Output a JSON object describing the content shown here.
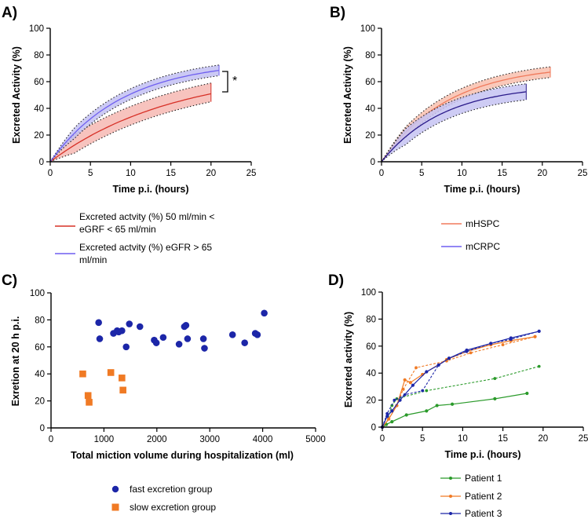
{
  "colors": {
    "red_line": "#d73027",
    "red_fill": "#f6b8b3",
    "blue_line": "#6f5ff0",
    "blue_fill": "#c2bff2",
    "salmon_line": "#f07a5c",
    "salmon_fill": "#f8bfae",
    "purple_line": "#2a1a8a",
    "purple_fill": "#c6c3f2",
    "scatter_fast": "#1c26a8",
    "scatter_slow": "#f07a24",
    "p1": "#2a9a2a",
    "p2": "#f07a24",
    "p3": "#1c26a8"
  },
  "panels": {
    "a": {
      "label": "A)",
      "sig": "*"
    },
    "b": {
      "label": "B)"
    },
    "c": {
      "label": "C)"
    },
    "d": {
      "label": "D)"
    }
  },
  "chart_data": [
    {
      "id": "A",
      "type": "line",
      "title": "",
      "xlabel": "Time p.i. (hours)",
      "ylabel": "Excreted Activity (%)",
      "xlim": [
        0,
        25
      ],
      "ylim": [
        0,
        100
      ],
      "xticks": [
        0,
        5,
        10,
        15,
        20,
        25
      ],
      "yticks": [
        0,
        20,
        40,
        60,
        80,
        100
      ],
      "annotation": "*",
      "series": [
        {
          "name": "Excreted actvity (%) 50 ml/min < eGRF < 65 ml/min",
          "legend_lines": [
            "Excreted actvity (%) 50 ml/min <",
            "eGRF < 65 ml/min"
          ],
          "color": "red",
          "plateau": 70,
          "rate": 0.065,
          "xmax": 20,
          "band_lo": 6,
          "band_hi": 8
        },
        {
          "name": "Excreted actvity (%) eGFR > 65 ml/min",
          "legend_lines": [
            "Excreted actvity (%) eGFR > 65",
            "ml/min"
          ],
          "color": "blue",
          "plateau": 76,
          "rate": 0.11,
          "xmax": 21,
          "band_lo": 4,
          "band_hi": 4
        }
      ]
    },
    {
      "id": "B",
      "type": "line",
      "title": "",
      "xlabel": "Time p.i. (hours)",
      "ylabel": "Excreted Activity (%)",
      "xlim": [
        0,
        25
      ],
      "ylim": [
        0,
        100
      ],
      "xticks": [
        0,
        5,
        10,
        15,
        20,
        25
      ],
      "yticks": [
        0,
        20,
        40,
        60,
        80,
        100
      ],
      "series": [
        {
          "name": "mHSPC",
          "color": "salmon",
          "plateau": 73,
          "rate": 0.12,
          "xmax": 21,
          "band_lo": 4,
          "band_hi": 4
        },
        {
          "name": "mCRPC",
          "color": "purple",
          "plateau": 58,
          "rate": 0.13,
          "xmax": 18,
          "band_lo": 6,
          "band_hi": 6
        }
      ]
    },
    {
      "id": "C",
      "type": "scatter",
      "title": "",
      "xlabel": "Total miction volume during hospitalization (ml)",
      "ylabel": "Exretion at 20 h p.i.",
      "xlim": [
        0,
        5000
      ],
      "ylim": [
        0,
        100
      ],
      "xticks": [
        0,
        1000,
        2000,
        3000,
        4000,
        5000
      ],
      "yticks": [
        0,
        20,
        40,
        60,
        80,
        100
      ],
      "series": [
        {
          "name": "fast excretion group",
          "marker": "circle",
          "color": "scatter_fast",
          "points": [
            [
              900,
              78
            ],
            [
              920,
              66
            ],
            [
              1180,
              70
            ],
            [
              1250,
              72
            ],
            [
              1280,
              71
            ],
            [
              1340,
              72
            ],
            [
              1420,
              60
            ],
            [
              1480,
              77
            ],
            [
              1680,
              75
            ],
            [
              1950,
              65
            ],
            [
              1990,
              63
            ],
            [
              2120,
              67
            ],
            [
              2420,
              62
            ],
            [
              2520,
              75
            ],
            [
              2550,
              76
            ],
            [
              2580,
              66
            ],
            [
              2880,
              66
            ],
            [
              2900,
              59
            ],
            [
              3430,
              69
            ],
            [
              3660,
              63
            ],
            [
              3860,
              70
            ],
            [
              3900,
              69
            ],
            [
              4030,
              85
            ]
          ]
        },
        {
          "name": "slow excretion group",
          "marker": "square",
          "color": "scatter_slow",
          "points": [
            [
              600,
              40
            ],
            [
              700,
              24
            ],
            [
              720,
              19
            ],
            [
              1130,
              41
            ],
            [
              1340,
              37
            ],
            [
              1360,
              28
            ]
          ]
        }
      ]
    },
    {
      "id": "D",
      "type": "line",
      "title": "",
      "xlabel": "Time p.i. (hours)",
      "ylabel": "Excreted activity (%)",
      "xlim": [
        0,
        25
      ],
      "ylim": [
        0,
        100
      ],
      "xticks": [
        0,
        5,
        10,
        15,
        20,
        25
      ],
      "yticks": [
        0,
        20,
        40,
        60,
        80,
        100
      ],
      "series": [
        {
          "name": "Patient 1",
          "color": "p1",
          "dashed_points": [
            [
              0,
              0
            ],
            [
              0.5,
              2
            ],
            [
              1.2,
              16
            ],
            [
              1.8,
              21
            ],
            [
              5.5,
              27
            ],
            [
              14,
              36
            ],
            [
              19.5,
              45
            ]
          ],
          "points": [
            [
              0,
              0
            ],
            [
              0.5,
              2
            ],
            [
              1.2,
              4
            ],
            [
              3,
              9
            ],
            [
              5.5,
              12
            ],
            [
              6.8,
              16
            ],
            [
              8.7,
              17
            ],
            [
              14,
              21
            ],
            [
              18,
              25
            ]
          ]
        },
        {
          "name": "Patient 2",
          "color": "p2",
          "dashed_points": [
            [
              0,
              0
            ],
            [
              0.8,
              6
            ],
            [
              1.8,
              16
            ],
            [
              2.6,
              28
            ],
            [
              4.2,
              44
            ],
            [
              8,
              49
            ],
            [
              11,
              55
            ],
            [
              15,
              61
            ],
            [
              19,
              67
            ]
          ],
          "points": [
            [
              0,
              0
            ],
            [
              0.8,
              6
            ],
            [
              1.8,
              16
            ],
            [
              2.8,
              35
            ],
            [
              3.5,
              33
            ],
            [
              5,
              39
            ],
            [
              8,
              50
            ],
            [
              10.5,
              56
            ],
            [
              13.5,
              61
            ],
            [
              16,
              64
            ],
            [
              19,
              67
            ]
          ]
        },
        {
          "name": "Patient 3",
          "color": "p3",
          "dashed_points": [
            [
              0,
              0
            ],
            [
              0.6,
              10
            ],
            [
              1.5,
              20
            ],
            [
              2.8,
              24
            ],
            [
              5,
              27
            ],
            [
              7,
              46
            ],
            [
              8.3,
              51
            ],
            [
              10.5,
              56
            ],
            [
              13.5,
              62
            ],
            [
              16,
              65
            ],
            [
              19.5,
              71
            ]
          ],
          "points": [
            [
              0,
              0
            ],
            [
              0.6,
              8
            ],
            [
              1.2,
              12
            ],
            [
              2.2,
              20
            ],
            [
              3.8,
              31
            ],
            [
              5.5,
              41
            ],
            [
              7,
              46
            ],
            [
              8.3,
              51
            ],
            [
              10.5,
              57
            ],
            [
              13.5,
              62
            ],
            [
              16,
              66
            ],
            [
              19.5,
              71
            ]
          ]
        }
      ]
    }
  ]
}
